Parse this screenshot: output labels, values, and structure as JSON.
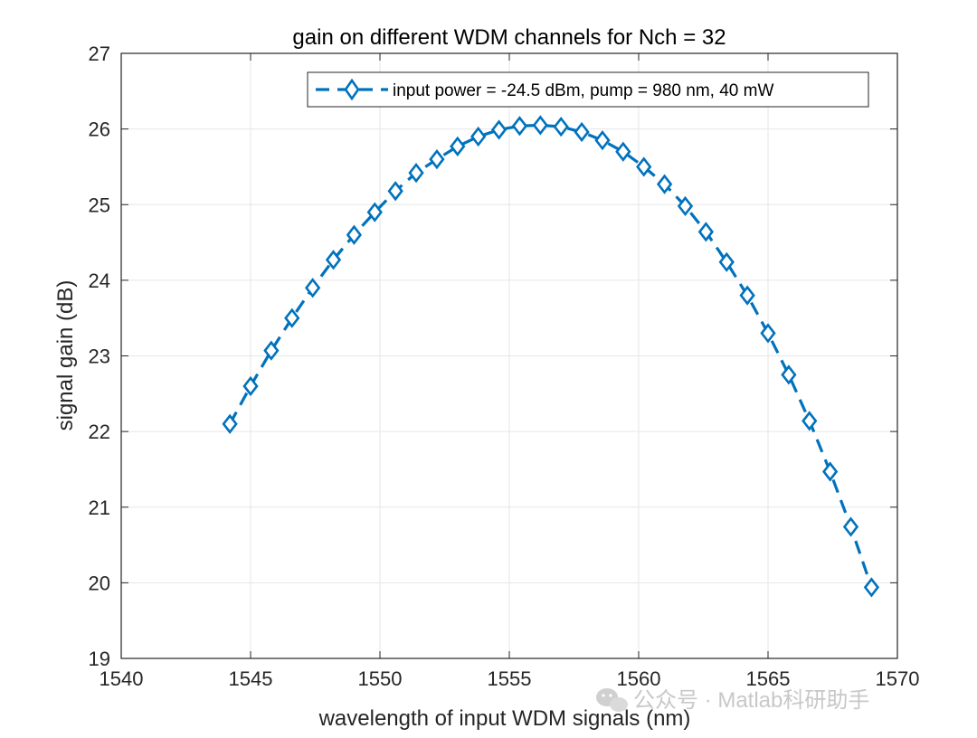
{
  "chart_data": {
    "type": "line",
    "title": "gain on different WDM channels for Nch = 32",
    "xlabel": "wavelength of input WDM signals (nm)",
    "ylabel": "signal gain (dB)",
    "xlim": [
      1540,
      1570
    ],
    "ylim": [
      19,
      27
    ],
    "xticks": [
      1540,
      1545,
      1550,
      1555,
      1560,
      1565,
      1570
    ],
    "yticks": [
      19,
      20,
      21,
      22,
      23,
      24,
      25,
      26,
      27
    ],
    "grid": true,
    "legend_position": "top-right",
    "series": [
      {
        "name": "input power = -24.5 dBm, pump = 980 nm, 40 mW",
        "color": "#0072BD",
        "line_style": "dashed",
        "marker": "diamond",
        "x": [
          1544.2,
          1545.0,
          1545.8,
          1546.6,
          1547.4,
          1548.2,
          1549.0,
          1549.8,
          1550.6,
          1551.4,
          1552.2,
          1553.0,
          1553.8,
          1554.6,
          1555.4,
          1556.2,
          1557.0,
          1557.8,
          1558.6,
          1559.4,
          1560.2,
          1561.0,
          1561.8,
          1562.6,
          1563.4,
          1564.2,
          1565.0,
          1565.8,
          1566.6,
          1567.4,
          1568.2,
          1569.0
        ],
        "y": [
          22.1,
          22.6,
          23.07,
          23.5,
          23.9,
          24.27,
          24.6,
          24.9,
          25.18,
          25.42,
          25.6,
          25.77,
          25.9,
          25.99,
          26.04,
          26.05,
          26.03,
          25.96,
          25.85,
          25.7,
          25.5,
          25.27,
          24.98,
          24.64,
          24.24,
          23.8,
          23.3,
          22.75,
          22.14,
          21.47,
          20.74,
          19.94
        ]
      }
    ]
  },
  "watermark": {
    "icon": "wechat-icon",
    "text": "公众号 · Matlab科研助手"
  }
}
